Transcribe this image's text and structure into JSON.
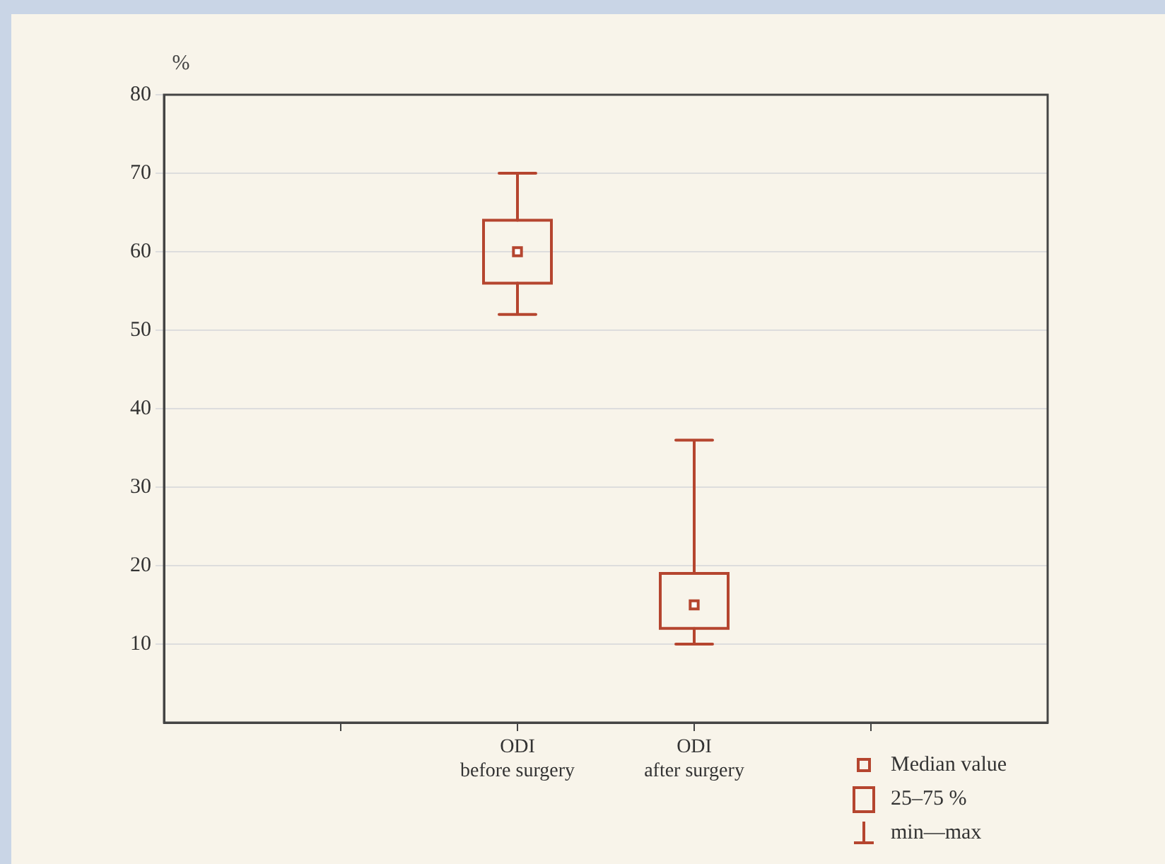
{
  "chart_data": {
    "type": "box",
    "ylabel": "%",
    "categories": [
      null,
      "ODI\nbefore surgery",
      "ODI\nafter surgery",
      null
    ],
    "series": [
      {
        "color": "#b5452f",
        "boxes": [
          null,
          {
            "low": 52,
            "q1": 56,
            "median": 60,
            "q3": 64,
            "high": 70
          },
          {
            "low": 10,
            "q1": 12,
            "median": 15,
            "q3": 19,
            "high": 36
          },
          null
        ]
      }
    ],
    "ylim": [
      0,
      80
    ],
    "yticks": [
      10,
      20,
      30,
      40,
      50,
      60,
      70,
      80
    ],
    "grid": "y",
    "marker": "square",
    "annotations": [
      "Median value",
      "25–75 %",
      "min—max"
    ]
  }
}
